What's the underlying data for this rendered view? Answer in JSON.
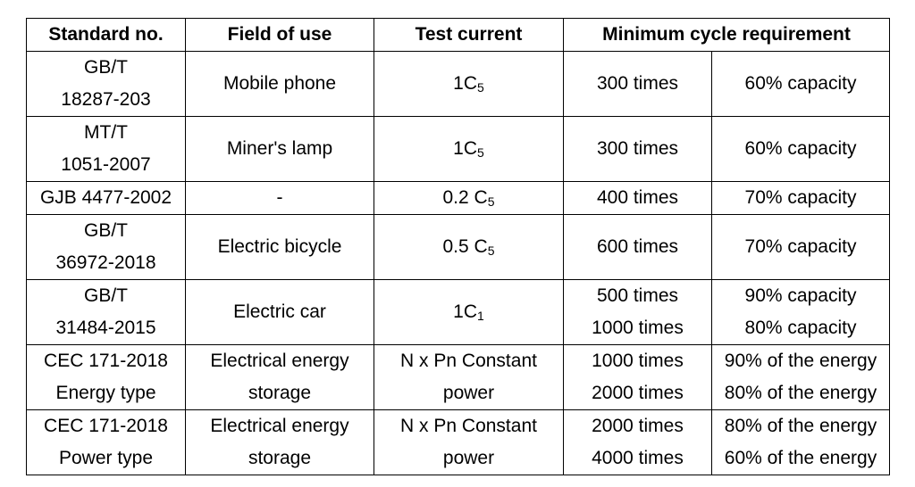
{
  "headers": {
    "standard": "Standard no.",
    "field": "Field of use",
    "current": "Test current",
    "cycle": "Minimum cycle requirement"
  },
  "rows": [
    {
      "standard": [
        "GB/T",
        "18287-203"
      ],
      "field": [
        "Mobile phone"
      ],
      "current": {
        "base": "1C",
        "sub": "5"
      },
      "cycles": [
        "300 times"
      ],
      "capacity": [
        "60% capacity"
      ]
    },
    {
      "standard": [
        "MT/T",
        "1051-2007"
      ],
      "field": [
        "Miner's lamp"
      ],
      "current": {
        "base": "1C",
        "sub": "5"
      },
      "cycles": [
        "300 times"
      ],
      "capacity": [
        "60% capacity"
      ]
    },
    {
      "standard": [
        "GJB 4477-2002"
      ],
      "field": [
        "-"
      ],
      "current": {
        "base": "0.2 C",
        "sub": "5"
      },
      "cycles": [
        "400 times"
      ],
      "capacity": [
        "70% capacity"
      ]
    },
    {
      "standard": [
        "GB/T",
        "36972-2018"
      ],
      "field": [
        "Electric bicycle"
      ],
      "current": {
        "base": "0.5 C",
        "sub": "5"
      },
      "cycles": [
        "600 times"
      ],
      "capacity": [
        "70% capacity"
      ]
    },
    {
      "standard": [
        "GB/T",
        "31484-2015"
      ],
      "field": [
        "Electric car"
      ],
      "current": {
        "base": "1C",
        "sub": "1"
      },
      "cycles": [
        "500 times",
        "1000 times"
      ],
      "capacity": [
        "90% capacity",
        "80% capacity"
      ]
    },
    {
      "standard": [
        "CEC 171-2018",
        "Energy type"
      ],
      "field": [
        "Electrical energy",
        "storage"
      ],
      "current": {
        "base": "N x Pn Constant",
        "line2": "power"
      },
      "cycles": [
        "1000 times",
        "2000 times"
      ],
      "capacity": [
        "90% of the energy",
        "80% of the energy"
      ]
    },
    {
      "standard": [
        "CEC 171-2018",
        "Power type"
      ],
      "field": [
        "Electrical energy",
        "storage"
      ],
      "current": {
        "base": "N x Pn Constant",
        "line2": "power"
      },
      "cycles": [
        "2000 times",
        "4000 times"
      ],
      "capacity": [
        "80% of the energy",
        "60% of the energy"
      ]
    }
  ]
}
